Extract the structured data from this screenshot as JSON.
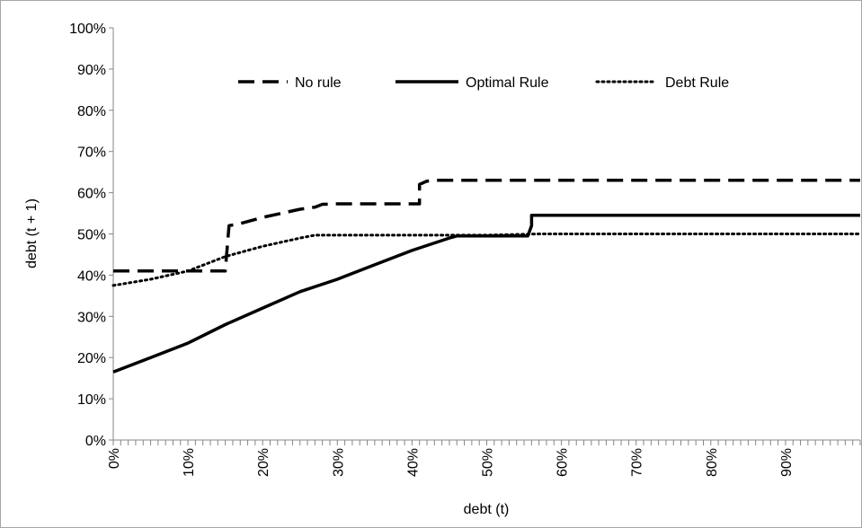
{
  "chart_data": {
    "type": "line",
    "title": "",
    "xlabel": "debt  (t)",
    "ylabel": "debt  (t + 1)",
    "xlim": [
      0,
      1
    ],
    "ylim": [
      0,
      1
    ],
    "x_tick_labels": [
      "0%",
      "10%",
      "20%",
      "30%",
      "40%",
      "50%",
      "60%",
      "70%",
      "80%",
      "90%"
    ],
    "y_tick_labels": [
      "0%",
      "10%",
      "20%",
      "30%",
      "40%",
      "50%",
      "60%",
      "70%",
      "80%",
      "90%",
      "100%"
    ],
    "grid": false,
    "legend_position": "top",
    "series": [
      {
        "name": "No rule",
        "style": "dashed",
        "color": "#000000",
        "x": [
          0,
          0.15,
          0.15,
          0.155,
          0.17,
          0.2,
          0.25,
          0.27,
          0.28,
          0.3,
          0.4,
          0.41,
          0.41,
          0.42,
          0.43,
          0.6,
          0.8,
          1.0
        ],
        "y": [
          0.41,
          0.41,
          0.41,
          0.52,
          0.525,
          0.54,
          0.56,
          0.565,
          0.572,
          0.573,
          0.573,
          0.573,
          0.62,
          0.628,
          0.63,
          0.63,
          0.63,
          0.63
        ]
      },
      {
        "name": "Optimal Rule",
        "style": "solid",
        "color": "#000000",
        "x": [
          0,
          0.05,
          0.1,
          0.15,
          0.2,
          0.25,
          0.3,
          0.35,
          0.4,
          0.45,
          0.46,
          0.5,
          0.555,
          0.56,
          0.56,
          0.7,
          0.85,
          1.0
        ],
        "y": [
          0.165,
          0.2,
          0.235,
          0.28,
          0.32,
          0.36,
          0.39,
          0.425,
          0.46,
          0.49,
          0.495,
          0.495,
          0.495,
          0.52,
          0.545,
          0.545,
          0.545,
          0.545
        ]
      },
      {
        "name": "Debt Rule",
        "style": "dotted",
        "color": "#000000",
        "x": [
          0,
          0.05,
          0.1,
          0.15,
          0.2,
          0.25,
          0.27,
          0.35,
          0.5,
          0.57,
          0.7,
          0.85,
          1.0
        ],
        "y": [
          0.375,
          0.39,
          0.41,
          0.445,
          0.47,
          0.49,
          0.497,
          0.497,
          0.497,
          0.5,
          0.5,
          0.5,
          0.5
        ]
      }
    ]
  }
}
